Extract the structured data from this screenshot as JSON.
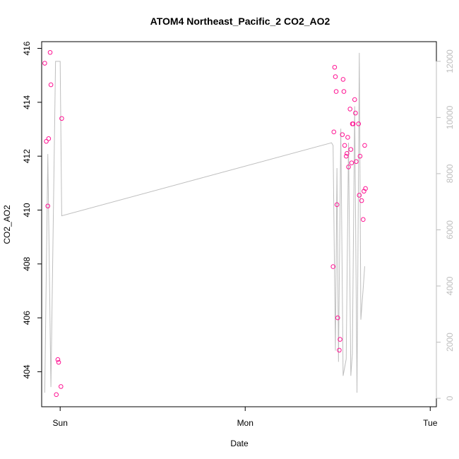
{
  "chart_data": {
    "type": "scatter",
    "title": "ATOM4 Northeast_Pacific_2 CO2_AO2",
    "xlabel": "Date",
    "ylabel": "CO2_AO2",
    "x_ticks": [
      "Sun",
      "Mon",
      "Tue"
    ],
    "x_range_hours": [
      -1.2,
      24.4
    ],
    "ylim": [
      402.7,
      416.25
    ],
    "y_ticks": [
      404,
      406,
      408,
      410,
      412,
      414,
      416
    ],
    "y2_ticks": [
      0,
      2000,
      4000,
      6000,
      8000,
      10000,
      12000
    ],
    "y2lim": [
      -300,
      12700
    ],
    "colors": {
      "points": "#ff1493",
      "line": "#bebebe",
      "axis": "#000000",
      "axis_right": "#bebebe"
    },
    "series": [
      {
        "type": "scatter",
        "x_hours": [
          -1.0,
          -0.9,
          -0.8,
          -0.75,
          -0.65,
          -0.6,
          -0.25,
          -0.15,
          -0.1,
          0.05,
          0.1,
          17.7,
          17.75,
          17.8,
          17.85,
          17.9,
          17.95,
          18.0,
          18.1,
          18.15,
          18.3,
          18.35,
          18.4,
          18.45,
          18.55,
          18.6,
          18.65,
          18.7,
          18.8,
          18.85,
          18.9,
          18.95,
          19.0,
          19.1,
          19.15,
          19.2,
          19.35,
          19.4,
          19.45,
          19.55,
          19.65,
          19.7,
          19.75,
          19.8
        ],
        "y": [
          415.45,
          412.55,
          410.15,
          412.65,
          415.85,
          414.65,
          403.15,
          404.45,
          404.35,
          403.45,
          413.4,
          407.9,
          412.9,
          415.3,
          414.95,
          414.4,
          410.2,
          406.0,
          404.8,
          405.2,
          412.8,
          414.85,
          414.4,
          412.4,
          412.0,
          412.1,
          412.7,
          411.6,
          413.75,
          412.25,
          411.75,
          413.2,
          413.2,
          414.1,
          413.6,
          411.8,
          413.2,
          410.55,
          412.0,
          410.35,
          409.65,
          410.7,
          412.4,
          410.8
        ]
      },
      {
        "type": "line",
        "axis": "right",
        "x_hours": [
          -1.0,
          -0.8,
          -0.6,
          -0.3,
          -0.3,
          0.0,
          0.0,
          0.1,
          17.6,
          17.7,
          17.85,
          17.95,
          18.05,
          18.2,
          18.35,
          18.55,
          18.7,
          18.85,
          18.95,
          19.1,
          19.25,
          19.4,
          19.5,
          19.65,
          19.75
        ],
        "y": [
          200,
          8700,
          400,
          12000,
          12000,
          12000,
          12000,
          6500,
          9100,
          9000,
          1700,
          8200,
          1300,
          9600,
          800,
          1400,
          9100,
          800,
          1600,
          10400,
          200,
          12300,
          2800,
          3900,
          4700
        ]
      }
    ]
  }
}
